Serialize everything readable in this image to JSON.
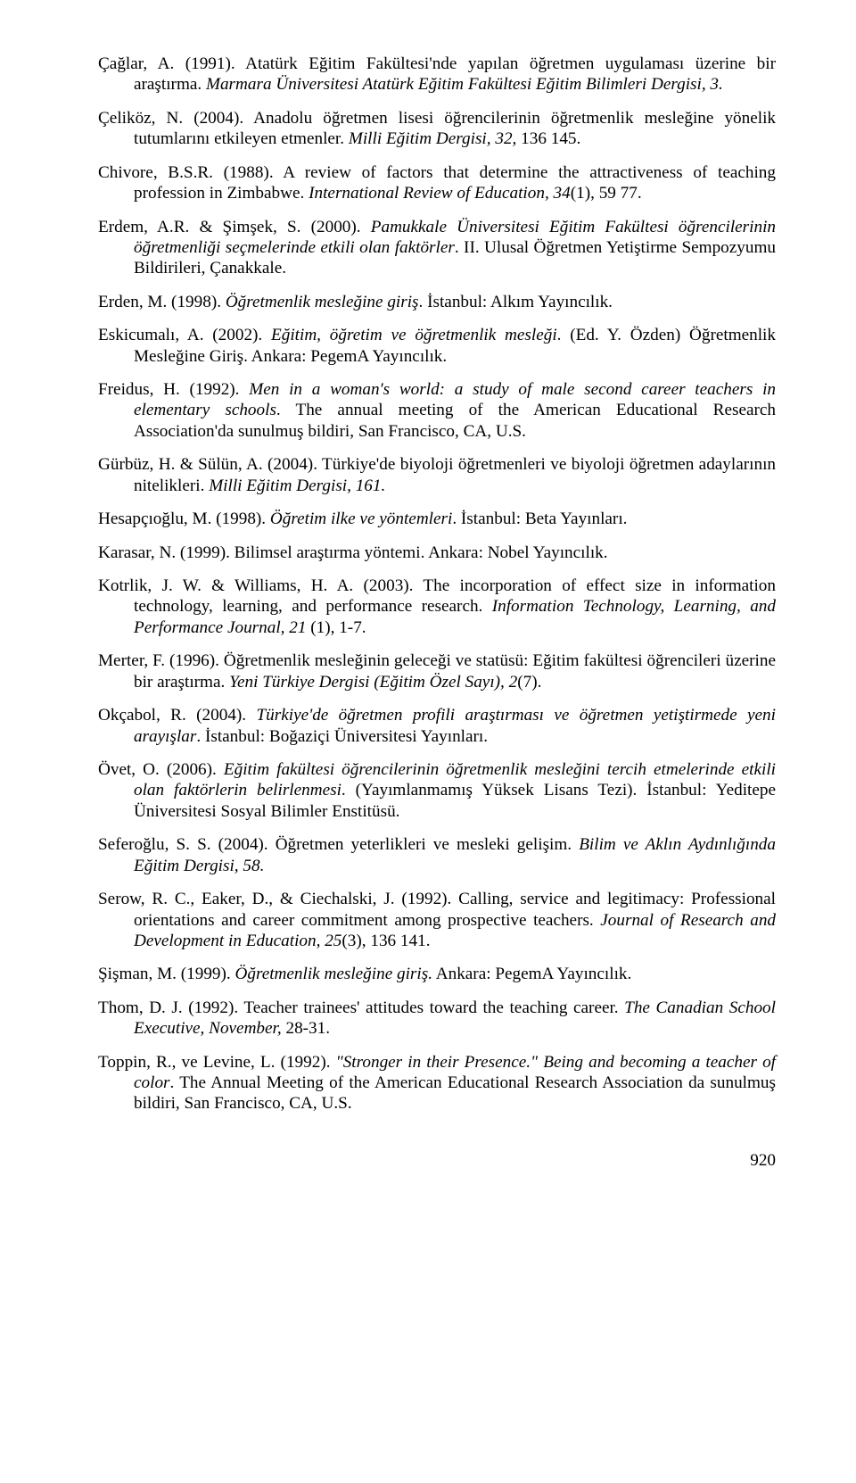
{
  "page_number": "920",
  "refs": [
    {
      "segments": [
        {
          "t": "Çağlar, A. (1991). Atatürk Eğitim Fakültesi'nde yapılan öğretmen uygulaması üzerine bir araştırma. "
        },
        {
          "t": "Marmara Üniversitesi Atatürk Eğitim Fakültesi Eğitim Bilimleri Dergisi, 3.",
          "i": true
        }
      ]
    },
    {
      "segments": [
        {
          "t": "Çeliköz, N. (2004). Anadolu öğretmen lisesi öğrencilerinin öğretmenlik mesleğine yönelik tutumlarını etkileyen etmenler. "
        },
        {
          "t": "Milli Eğitim Dergisi, 32,",
          "i": true
        },
        {
          "t": " 136 145."
        }
      ]
    },
    {
      "segments": [
        {
          "t": "Chivore, B.S.R. (1988). A review of factors that determine the attractiveness of teaching profession in Zimbabwe. "
        },
        {
          "t": "International Review of Education, 34",
          "i": true
        },
        {
          "t": "(1), 59 77."
        }
      ]
    },
    {
      "segments": [
        {
          "t": "Erdem, A.R. & Şimşek, S. (2000). "
        },
        {
          "t": "Pamukkale Üniversitesi Eğitim Fakültesi öğrencilerinin öğretmenliği seçmelerinde etkili olan faktörler",
          "i": true
        },
        {
          "t": ". II. Ulusal Öğretmen Yetiştirme Sempozyumu Bildirileri, Çanakkale."
        }
      ]
    },
    {
      "segments": [
        {
          "t": "Erden, M. (1998). "
        },
        {
          "t": "Öğretmenlik mesleğine giriş",
          "i": true
        },
        {
          "t": ". İstanbul: Alkım Yayıncılık."
        }
      ]
    },
    {
      "segments": [
        {
          "t": "Eskicumalı, A. (2002). "
        },
        {
          "t": "Eğitim, öğretim ve öğretmenlik mesleği",
          "i": true
        },
        {
          "t": ". (Ed. Y. Özden) Öğretmenlik Mesleğine Giriş. Ankara: PegemA Yayıncılık."
        }
      ]
    },
    {
      "segments": [
        {
          "t": "Freidus, H. (1992). "
        },
        {
          "t": "Men in a woman's world: a study of male second career teachers in elementary schools",
          "i": true
        },
        {
          "t": ". The annual meeting of the American Educational Research Association'da sunulmuş bildiri, San Francisco, CA, U.S."
        }
      ]
    },
    {
      "segments": [
        {
          "t": "Gürbüz, H. & Sülün, A. (2004). Türkiye'de biyoloji öğretmenleri ve biyoloji öğretmen adaylarının nitelikleri. "
        },
        {
          "t": "Milli Eğitim Dergisi, 161.",
          "i": true
        }
      ]
    },
    {
      "segments": [
        {
          "t": "Hesapçıoğlu, M. (1998). "
        },
        {
          "t": "Öğretim ilke ve yöntemleri",
          "i": true
        },
        {
          "t": ". İstanbul: Beta Yayınları."
        }
      ]
    },
    {
      "segments": [
        {
          "t": "Karasar, N. (1999). Bilimsel araştırma yöntemi. Ankara: Nobel Yayıncılık."
        }
      ]
    },
    {
      "segments": [
        {
          "t": "Kotrlik, J. W. & Williams, H. A. (2003). The incorporation of effect size in information technology, learning, and performance research. "
        },
        {
          "t": "Information Technology, Learning, and Performance Journal, 21",
          "i": true
        },
        {
          "t": " (1), 1-7."
        }
      ]
    },
    {
      "segments": [
        {
          "t": "Merter, F. (1996). Öğretmenlik mesleğinin geleceği ve statüsü: Eğitim fakültesi öğrencileri üzerine bir araştırma. "
        },
        {
          "t": "Yeni Türkiye Dergisi (Eğitim Özel Sayı), 2",
          "i": true
        },
        {
          "t": "(7)."
        }
      ]
    },
    {
      "segments": [
        {
          "t": "Okçabol, R. (2004). "
        },
        {
          "t": "Türkiye'de öğretmen profili araştırması ve öğretmen yetiştirmede yeni arayışlar",
          "i": true
        },
        {
          "t": ". İstanbul: Boğaziçi Üniversitesi Yayınları."
        }
      ]
    },
    {
      "segments": [
        {
          "t": "Övet, O. (2006). "
        },
        {
          "t": "Eğitim fakültesi öğrencilerinin öğretmenlik mesleğini tercih etmelerinde etkili olan faktörlerin belirlenmesi",
          "i": true
        },
        {
          "t": ". (Yayımlanmamış Yüksek Lisans Tezi). İstanbul: Yeditepe Üniversitesi Sosyal Bilimler Enstitüsü."
        }
      ]
    },
    {
      "segments": [
        {
          "t": "Seferoğlu, S. S. (2004). Öğretmen yeterlikleri ve mesleki gelişim. "
        },
        {
          "t": "Bilim ve Aklın Aydınlığında Eğitim Dergisi, 58.",
          "i": true
        }
      ]
    },
    {
      "segments": [
        {
          "t": "Serow, R. C., Eaker, D., & Ciechalski, J. (1992). Calling, service and legitimacy: Professional orientations and career commitment among prospective teachers. "
        },
        {
          "t": "Journal of Research and Development in Education, 25",
          "i": true
        },
        {
          "t": "(3), 136 141."
        }
      ]
    },
    {
      "segments": [
        {
          "t": "Şişman, M. (1999). "
        },
        {
          "t": "Öğretmenlik mesleğine giriş.",
          "i": true
        },
        {
          "t": " Ankara: PegemA Yayıncılık."
        }
      ]
    },
    {
      "segments": [
        {
          "t": "Thom, D. J. (1992). Teacher trainees' attitudes toward the teaching career. "
        },
        {
          "t": "The Canadian School Executive, November,",
          "i": true
        },
        {
          "t": " 28-31."
        }
      ]
    },
    {
      "segments": [
        {
          "t": "Toppin, R., ve Levine, L. (1992). "
        },
        {
          "t": "\"Stronger in their Presence.\" Being and becoming a teacher of color",
          "i": true
        },
        {
          "t": ". The Annual Meeting of the American Educational Research Association da sunulmuş bildiri, San Francisco, CA, U.S."
        }
      ]
    }
  ]
}
